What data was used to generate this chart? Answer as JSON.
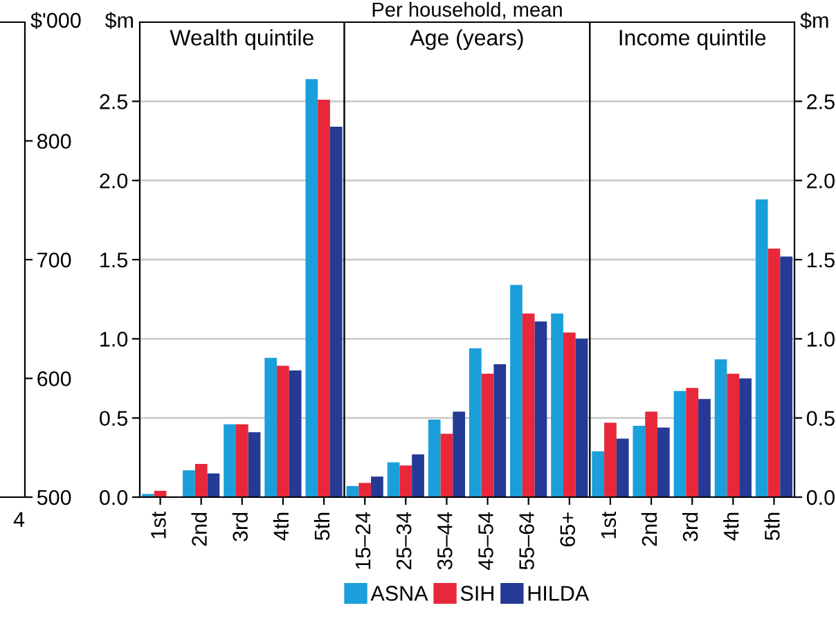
{
  "chart_data": [
    {
      "type": "bar",
      "ylabel": "$'000",
      "categories": [
        null
      ],
      "values": [
        null
      ],
      "ylim": [
        500,
        900
      ],
      "yticks": [
        500,
        600,
        700,
        800
      ],
      "tick_labels": "y",
      "annotations": [
        "4"
      ]
    },
    {
      "type": "bar",
      "title": "Wealth quintile",
      "ylabel": "$m",
      "categories": [
        "1st",
        "2nd",
        "3rd",
        "4th",
        "5th"
      ],
      "series": [
        {
          "color": "#1a9fda",
          "values": [
            0.02,
            0.17,
            0.46,
            0.88,
            2.64
          ]
        },
        {
          "color": "#e8283a",
          "values": [
            0.04,
            0.21,
            0.46,
            0.83,
            2.51
          ]
        },
        {
          "color": "#253a94",
          "values": [
            0.0,
            0.15,
            0.41,
            0.8,
            2.34
          ]
        }
      ],
      "ylim": [
        0,
        3.0
      ],
      "yticks": [
        {
          "value": 0,
          "label": "0.0"
        },
        0.5,
        {
          "value": 1,
          "label": "1.0"
        },
        1.5,
        {
          "value": 2,
          "label": "2.0"
        },
        2.5
      ],
      "tick_labels": "y",
      "grid": "y"
    },
    {
      "type": "bar",
      "title": "Age (years)",
      "categories": [
        "15–24",
        "25–34",
        "35–44",
        "45–54",
        "55–64",
        "65+"
      ],
      "series": [
        {
          "name": "ASNA",
          "color": "#1a9fda",
          "values": [
            0.07,
            0.22,
            0.49,
            0.94,
            1.34,
            1.16
          ]
        },
        {
          "name": "SIH",
          "color": "#e8283a",
          "values": [
            0.09,
            0.2,
            0.4,
            0.78,
            1.16,
            1.04
          ]
        },
        {
          "name": "HILDA",
          "color": "#253a94",
          "values": [
            0.13,
            0.27,
            0.54,
            0.84,
            1.11,
            1.0
          ]
        }
      ],
      "ylim": [
        0,
        3.0
      ],
      "yticks": [
        0,
        0.5,
        1,
        1.5,
        2,
        2.5
      ],
      "tick_labels": "x",
      "grid": "y",
      "legend": "bottom",
      "annotations": [
        "Per household, mean"
      ]
    },
    {
      "type": "bar",
      "title": "Income quintile",
      "ylabel": "$m",
      "categories": [
        "1st",
        "2nd",
        "3rd",
        "4th",
        "5th"
      ],
      "series": [
        {
          "color": "#1a9fda",
          "values": [
            0.29,
            0.45,
            0.67,
            0.87,
            1.88
          ]
        },
        {
          "color": "#e8283a",
          "values": [
            0.47,
            0.54,
            0.69,
            0.78,
            1.57
          ]
        },
        {
          "color": "#253a94",
          "values": [
            0.37,
            0.44,
            0.62,
            0.75,
            1.52
          ]
        }
      ],
      "ylim": [
        0,
        3.0
      ],
      "yticks": [
        {
          "value": 0,
          "label": "0.0"
        },
        0.5,
        {
          "value": 1,
          "label": "1.0"
        },
        1.5,
        {
          "value": 2,
          "label": "2.0"
        },
        2.5
      ],
      "tick_labels": "y",
      "grid": "y"
    }
  ]
}
